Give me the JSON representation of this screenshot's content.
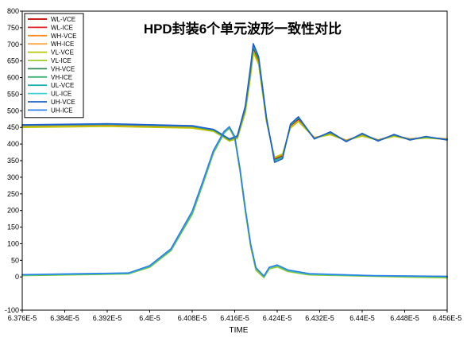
{
  "chart_data": {
    "type": "line",
    "title": "HPD封装6个单元波形一致性对比",
    "xlabel": "TIME",
    "ylabel": "",
    "xlim": [
      6.376e-05,
      6.456e-05
    ],
    "ylim": [
      -100,
      800
    ],
    "x_ticks": [
      6.376e-05,
      6.384e-05,
      6.392e-05,
      6.4e-05,
      6.408e-05,
      6.416e-05,
      6.424e-05,
      6.432e-05,
      6.44e-05,
      6.448e-05,
      6.456e-05
    ],
    "x_tick_labels": [
      "6.376E-5",
      "6.384E-5",
      "6.392E-5",
      "6.4E-5",
      "6.408E-5",
      "6.416E-5",
      "6.424E-5",
      "6.432E-5",
      "6.44E-5",
      "6.448E-5",
      "6.456E-5"
    ],
    "y_ticks": [
      -100,
      0,
      50,
      100,
      150,
      200,
      250,
      300,
      350,
      400,
      450,
      500,
      550,
      600,
      650,
      700,
      750,
      800
    ],
    "y_tick_labels": [
      "-100",
      "0",
      "50",
      "100",
      "150",
      "200",
      "250",
      "300",
      "350",
      "400",
      "450",
      "500",
      "550",
      "600",
      "650",
      "700",
      "750",
      "800"
    ],
    "grid": false,
    "legend_position": "top-left",
    "series": [
      {
        "name": "WL-VCE",
        "color": "#c00000",
        "kind": "vce",
        "x": [
          6.376e-05,
          6.392e-05,
          6.408e-05,
          6.412e-05,
          6.4135e-05,
          6.415e-05,
          6.4165e-05,
          6.418e-05,
          6.419e-05,
          6.4195e-05,
          6.4205e-05,
          6.422e-05,
          6.4235e-05,
          6.425e-05,
          6.4265e-05,
          6.428e-05,
          6.431e-05,
          6.434e-05,
          6.437e-05,
          6.44e-05,
          6.443e-05,
          6.446e-05,
          6.449e-05,
          6.452e-05,
          6.456e-05
        ],
        "y": [
          455,
          458,
          452,
          440,
          425,
          410,
          420,
          505,
          620,
          690,
          650,
          470,
          355,
          365,
          455,
          475,
          418,
          432,
          410,
          428,
          412,
          426,
          415,
          420,
          415
        ]
      },
      {
        "name": "WL-ICE",
        "color": "#e02020",
        "kind": "ice",
        "x": [
          6.376e-05,
          6.396e-05,
          6.4e-05,
          6.404e-05,
          6.408e-05,
          6.41e-05,
          6.412e-05,
          6.414e-05,
          6.415e-05,
          6.416e-05,
          6.417e-05,
          6.418e-05,
          6.419e-05,
          6.42e-05,
          6.4215e-05,
          6.4225e-05,
          6.424e-05,
          6.426e-05,
          6.43e-05,
          6.436e-05,
          6.442e-05,
          6.456e-05
        ],
        "y": [
          5,
          10,
          30,
          80,
          190,
          280,
          375,
          435,
          450,
          420,
          320,
          200,
          95,
          25,
          0,
          25,
          32,
          18,
          8,
          5,
          3,
          0
        ]
      },
      {
        "name": "WH-VCE",
        "color": "#ff8c1a",
        "kind": "vce",
        "x": [
          6.376e-05,
          6.392e-05,
          6.408e-05,
          6.412e-05,
          6.4135e-05,
          6.415e-05,
          6.4165e-05,
          6.418e-05,
          6.419e-05,
          6.4195e-05,
          6.4205e-05,
          6.422e-05,
          6.4235e-05,
          6.425e-05,
          6.4265e-05,
          6.428e-05,
          6.431e-05,
          6.434e-05,
          6.437e-05,
          6.44e-05,
          6.443e-05,
          6.446e-05,
          6.449e-05,
          6.452e-05,
          6.456e-05
        ],
        "y": [
          454,
          457,
          451,
          441,
          427,
          412,
          418,
          498,
          610,
          680,
          645,
          468,
          358,
          368,
          450,
          470,
          420,
          430,
          412,
          426,
          413,
          424,
          416,
          419,
          416
        ]
      },
      {
        "name": "WH-ICE",
        "color": "#ffa640",
        "kind": "ice",
        "x": [
          6.376e-05,
          6.396e-05,
          6.4e-05,
          6.404e-05,
          6.408e-05,
          6.41e-05,
          6.412e-05,
          6.414e-05,
          6.415e-05,
          6.416e-05,
          6.417e-05,
          6.418e-05,
          6.419e-05,
          6.42e-05,
          6.4215e-05,
          6.4225e-05,
          6.424e-05,
          6.426e-05,
          6.43e-05,
          6.436e-05,
          6.442e-05,
          6.456e-05
        ],
        "y": [
          6,
          11,
          32,
          82,
          195,
          285,
          378,
          436,
          448,
          418,
          318,
          198,
          92,
          22,
          2,
          26,
          33,
          18,
          9,
          6,
          3,
          1
        ]
      },
      {
        "name": "VL-VCE",
        "color": "#b8c800",
        "kind": "vce",
        "x": [
          6.376e-05,
          6.392e-05,
          6.408e-05,
          6.412e-05,
          6.4135e-05,
          6.415e-05,
          6.4165e-05,
          6.418e-05,
          6.419e-05,
          6.4195e-05,
          6.4205e-05,
          6.422e-05,
          6.4235e-05,
          6.425e-05,
          6.4265e-05,
          6.428e-05,
          6.431e-05,
          6.434e-05,
          6.437e-05,
          6.44e-05,
          6.443e-05,
          6.446e-05,
          6.449e-05,
          6.452e-05,
          6.456e-05
        ],
        "y": [
          450,
          453,
          448,
          438,
          424,
          409,
          416,
          495,
          605,
          676,
          640,
          466,
          360,
          370,
          448,
          468,
          418,
          428,
          410,
          424,
          411,
          423,
          414,
          418,
          414
        ]
      },
      {
        "name": "VL-ICE",
        "color": "#9ccc30",
        "kind": "ice",
        "x": [
          6.376e-05,
          6.396e-05,
          6.4e-05,
          6.404e-05,
          6.408e-05,
          6.41e-05,
          6.412e-05,
          6.414e-05,
          6.415e-05,
          6.416e-05,
          6.417e-05,
          6.418e-05,
          6.419e-05,
          6.42e-05,
          6.4215e-05,
          6.4225e-05,
          6.424e-05,
          6.426e-05,
          6.43e-05,
          6.436e-05,
          6.442e-05,
          6.456e-05
        ],
        "y": [
          4,
          9,
          29,
          79,
          188,
          278,
          372,
          433,
          447,
          417,
          316,
          196,
          90,
          20,
          -2,
          24,
          30,
          16,
          6,
          4,
          2,
          -3
        ]
      },
      {
        "name": "VH-VCE",
        "color": "#2e8b57",
        "kind": "vce",
        "x": [
          6.376e-05,
          6.392e-05,
          6.408e-05,
          6.412e-05,
          6.4135e-05,
          6.415e-05,
          6.4165e-05,
          6.418e-05,
          6.419e-05,
          6.4195e-05,
          6.4205e-05,
          6.422e-05,
          6.4235e-05,
          6.425e-05,
          6.4265e-05,
          6.428e-05,
          6.431e-05,
          6.434e-05,
          6.437e-05,
          6.44e-05,
          6.443e-05,
          6.446e-05,
          6.449e-05,
          6.452e-05,
          6.456e-05
        ],
        "y": [
          456,
          459,
          453,
          442,
          428,
          413,
          422,
          508,
          625,
          694,
          655,
          472,
          352,
          362,
          456,
          478,
          417,
          434,
          409,
          430,
          411,
          427,
          414,
          421,
          414
        ]
      },
      {
        "name": "VH-ICE",
        "color": "#3cb371",
        "kind": "ice",
        "x": [
          6.376e-05,
          6.396e-05,
          6.4e-05,
          6.404e-05,
          6.408e-05,
          6.41e-05,
          6.412e-05,
          6.414e-05,
          6.415e-05,
          6.416e-05,
          6.417e-05,
          6.418e-05,
          6.419e-05,
          6.42e-05,
          6.4215e-05,
          6.4225e-05,
          6.424e-05,
          6.426e-05,
          6.43e-05,
          6.436e-05,
          6.442e-05,
          6.456e-05
        ],
        "y": [
          5,
          10,
          31,
          81,
          192,
          282,
          376,
          434,
          449,
          421,
          322,
          201,
          96,
          26,
          1,
          27,
          34,
          19,
          8,
          5,
          3,
          0
        ]
      },
      {
        "name": "UL-VCE",
        "color": "#20b2aa",
        "kind": "vce",
        "x": [
          6.376e-05,
          6.392e-05,
          6.408e-05,
          6.412e-05,
          6.4135e-05,
          6.415e-05,
          6.4165e-05,
          6.418e-05,
          6.419e-05,
          6.4195e-05,
          6.4205e-05,
          6.422e-05,
          6.4235e-05,
          6.425e-05,
          6.4265e-05,
          6.428e-05,
          6.431e-05,
          6.434e-05,
          6.437e-05,
          6.44e-05,
          6.443e-05,
          6.446e-05,
          6.449e-05,
          6.452e-05,
          6.456e-05
        ],
        "y": [
          457,
          460,
          454,
          443,
          429,
          414,
          424,
          512,
          632,
          698,
          660,
          475,
          350,
          360,
          458,
          480,
          416,
          436,
          408,
          431,
          410,
          428,
          413,
          422,
          413
        ]
      },
      {
        "name": "UL-ICE",
        "color": "#40d0d0",
        "kind": "ice",
        "x": [
          6.376e-05,
          6.396e-05,
          6.4e-05,
          6.404e-05,
          6.408e-05,
          6.41e-05,
          6.412e-05,
          6.414e-05,
          6.415e-05,
          6.416e-05,
          6.417e-05,
          6.418e-05,
          6.419e-05,
          6.42e-05,
          6.4215e-05,
          6.4225e-05,
          6.424e-05,
          6.426e-05,
          6.43e-05,
          6.436e-05,
          6.442e-05,
          6.456e-05
        ],
        "y": [
          6,
          11,
          33,
          84,
          196,
          286,
          379,
          437,
          451,
          422,
          324,
          203,
          98,
          27,
          2,
          28,
          35,
          20,
          9,
          6,
          4,
          1
        ]
      },
      {
        "name": "UH-VCE",
        "color": "#1f5fd0",
        "kind": "vce",
        "x": [
          6.376e-05,
          6.392e-05,
          6.408e-05,
          6.412e-05,
          6.4135e-05,
          6.415e-05,
          6.4165e-05,
          6.418e-05,
          6.419e-05,
          6.4195e-05,
          6.4205e-05,
          6.422e-05,
          6.4235e-05,
          6.425e-05,
          6.4265e-05,
          6.428e-05,
          6.431e-05,
          6.434e-05,
          6.437e-05,
          6.44e-05,
          6.443e-05,
          6.446e-05,
          6.449e-05,
          6.452e-05,
          6.456e-05
        ],
        "y": [
          458,
          461,
          455,
          444,
          430,
          415,
          425,
          515,
          636,
          702,
          663,
          478,
          345,
          356,
          460,
          482,
          415,
          437,
          407,
          432,
          409,
          429,
          412,
          423,
          412
        ]
      },
      {
        "name": "UH-ICE",
        "color": "#2a80e8",
        "kind": "ice",
        "x": [
          6.376e-05,
          6.396e-05,
          6.4e-05,
          6.404e-05,
          6.408e-05,
          6.41e-05,
          6.412e-05,
          6.414e-05,
          6.415e-05,
          6.416e-05,
          6.417e-05,
          6.418e-05,
          6.419e-05,
          6.42e-05,
          6.4215e-05,
          6.4225e-05,
          6.424e-05,
          6.426e-05,
          6.43e-05,
          6.436e-05,
          6.442e-05,
          6.456e-05
        ],
        "y": [
          7,
          12,
          34,
          85,
          198,
          288,
          381,
          438,
          452,
          423,
          325,
          205,
          99,
          28,
          3,
          29,
          36,
          21,
          10,
          7,
          4,
          2
        ]
      }
    ]
  }
}
